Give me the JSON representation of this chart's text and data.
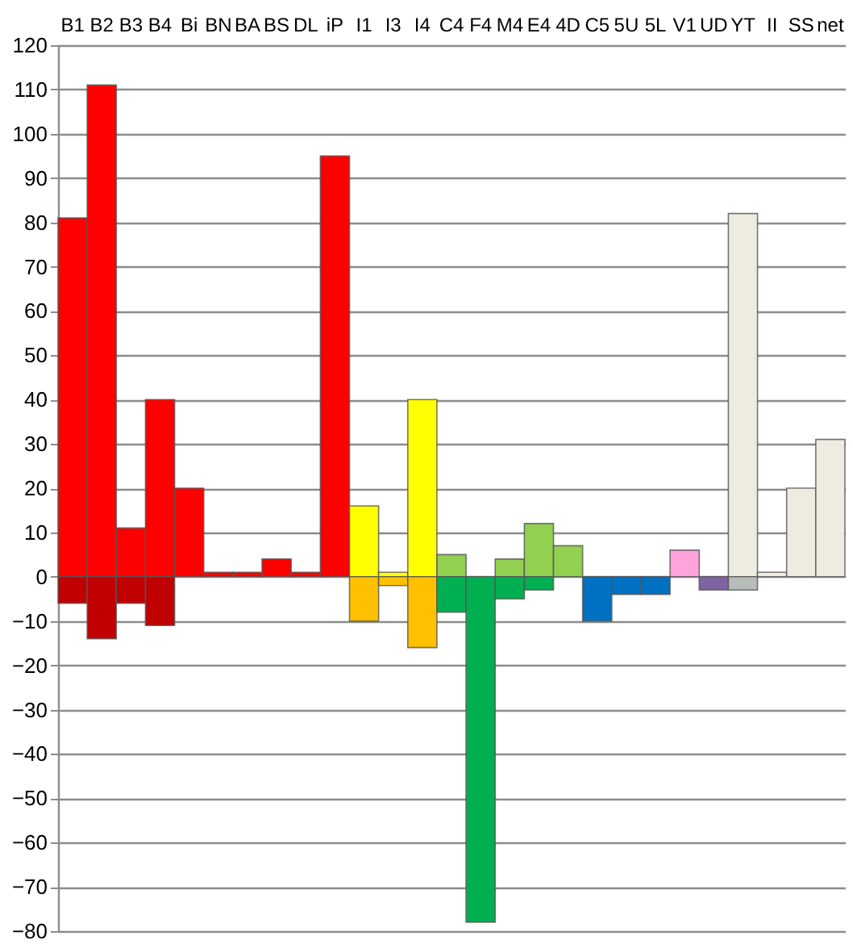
{
  "chart_data": {
    "type": "bar",
    "stacked": true,
    "grid": "y",
    "categories": [
      "B1",
      "B2",
      "B3",
      "B4",
      "Bi",
      "BN",
      "BA",
      "BS",
      "DL",
      "iP",
      "I1",
      "I3",
      "I4",
      "C4",
      "F4",
      "M4",
      "E4",
      "4D",
      "C5",
      "5U",
      "5L",
      "V1",
      "UD",
      "YT",
      "II",
      "SS",
      "net"
    ],
    "ylim": [
      -80,
      120
    ],
    "yticks": [
      -80,
      -70,
      -60,
      -50,
      -40,
      -30,
      -20,
      -10,
      0,
      10,
      20,
      30,
      40,
      50,
      60,
      70,
      80,
      90,
      100,
      110,
      120
    ],
    "series": [
      {
        "values": [
          81,
          111,
          11,
          40,
          20,
          1,
          1,
          4,
          1,
          95,
          16,
          1,
          40,
          5,
          null,
          4,
          12,
          7,
          null,
          null,
          null,
          6,
          null,
          82,
          1,
          20,
          31
        ],
        "colors": [
          "#ff0000",
          "#ff0000",
          "#ff0000",
          "#ff0000",
          "#ff0000",
          "#ff0000",
          "#ff0000",
          "#ff0000",
          "#ff0000",
          "#ff0000",
          "#ffff00",
          "#ffff00",
          "#ffff00",
          "#92d050",
          null,
          "#92d050",
          "#92d050",
          "#92d050",
          null,
          null,
          null,
          "#ffa3dd",
          null,
          "#eeece1",
          "#eeece1",
          "#eeece1",
          "#eeece1"
        ]
      },
      {
        "values": [
          -6,
          -14,
          -6,
          -11,
          null,
          null,
          null,
          null,
          null,
          null,
          -10,
          -2,
          -16,
          -8,
          -78,
          -5,
          -3,
          null,
          -10,
          -4,
          -4,
          null,
          -3,
          -3,
          null,
          null,
          null
        ],
        "colors": [
          "#c00000",
          "#c00000",
          "#c00000",
          "#c00000",
          null,
          null,
          null,
          null,
          null,
          null,
          "#ffc000",
          "#ffc000",
          "#ffc000",
          "#00b050",
          "#00b050",
          "#00b050",
          "#00b050",
          null,
          "#0070c0",
          "#0070c0",
          "#0070c0",
          null,
          "#8064a2",
          "#b8bdb8",
          null,
          null,
          null
        ]
      }
    ]
  }
}
